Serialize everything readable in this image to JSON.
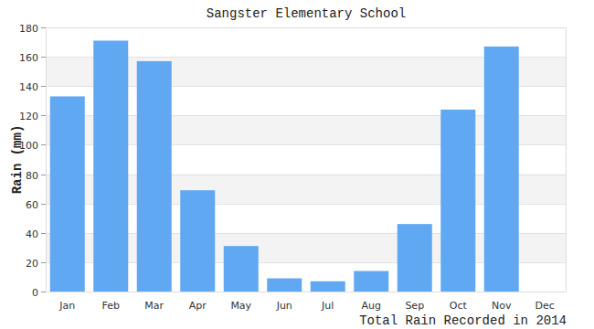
{
  "chart_data": {
    "type": "bar",
    "title": "Sangster Elementary School",
    "ylabel": "Rain (mm)",
    "xlabel": "Total Rain Recorded in 2014",
    "categories": [
      "Jan",
      "Feb",
      "Mar",
      "Apr",
      "May",
      "Jun",
      "Jul",
      "Aug",
      "Sep",
      "Oct",
      "Nov",
      "Dec"
    ],
    "values": [
      133,
      171,
      157,
      69,
      31,
      9,
      7,
      14,
      46,
      124,
      167,
      0
    ],
    "color": "#60a8f2",
    "ylim": [
      0,
      180
    ],
    "yticks": [
      0,
      20,
      40,
      60,
      80,
      100,
      120,
      140,
      160,
      180
    ],
    "grid": true
  }
}
